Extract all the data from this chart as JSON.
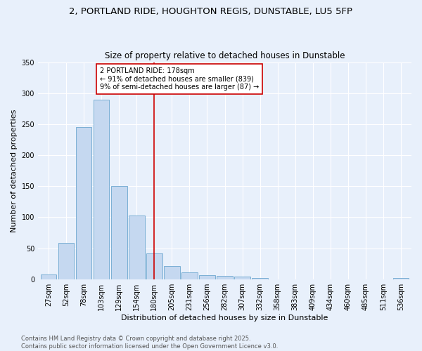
{
  "title_line1": "2, PORTLAND RIDE, HOUGHTON REGIS, DUNSTABLE, LU5 5FP",
  "title_line2": "Size of property relative to detached houses in Dunstable",
  "xlabel": "Distribution of detached houses by size in Dunstable",
  "ylabel": "Number of detached properties",
  "bar_labels": [
    "27sqm",
    "52sqm",
    "78sqm",
    "103sqm",
    "129sqm",
    "154sqm",
    "180sqm",
    "205sqm",
    "231sqm",
    "256sqm",
    "282sqm",
    "307sqm",
    "332sqm",
    "358sqm",
    "383sqm",
    "409sqm",
    "434sqm",
    "460sqm",
    "485sqm",
    "511sqm",
    "536sqm"
  ],
  "bar_values": [
    8,
    58,
    245,
    290,
    150,
    103,
    42,
    21,
    11,
    7,
    5,
    4,
    2,
    0,
    0,
    0,
    0,
    0,
    0,
    0,
    2
  ],
  "bar_color": "#c5d8f0",
  "bar_edge_color": "#7bafd4",
  "vline_x": 6,
  "vline_color": "#cc0000",
  "annotation_text": "2 PORTLAND RIDE: 178sqm\n← 91% of detached houses are smaller (839)\n9% of semi-detached houses are larger (87) →",
  "annotation_box_color": "#cc0000",
  "ylim": [
    0,
    350
  ],
  "yticks": [
    0,
    50,
    100,
    150,
    200,
    250,
    300,
    350
  ],
  "footnote": "Contains HM Land Registry data © Crown copyright and database right 2025.\nContains public sector information licensed under the Open Government Licence v3.0.",
  "background_color": "#e8f0fb",
  "grid_color": "#ffffff",
  "title_fontsize": 9.5,
  "subtitle_fontsize": 8.5,
  "axis_label_fontsize": 8,
  "tick_fontsize": 7,
  "annotation_fontsize": 7,
  "footnote_fontsize": 6
}
